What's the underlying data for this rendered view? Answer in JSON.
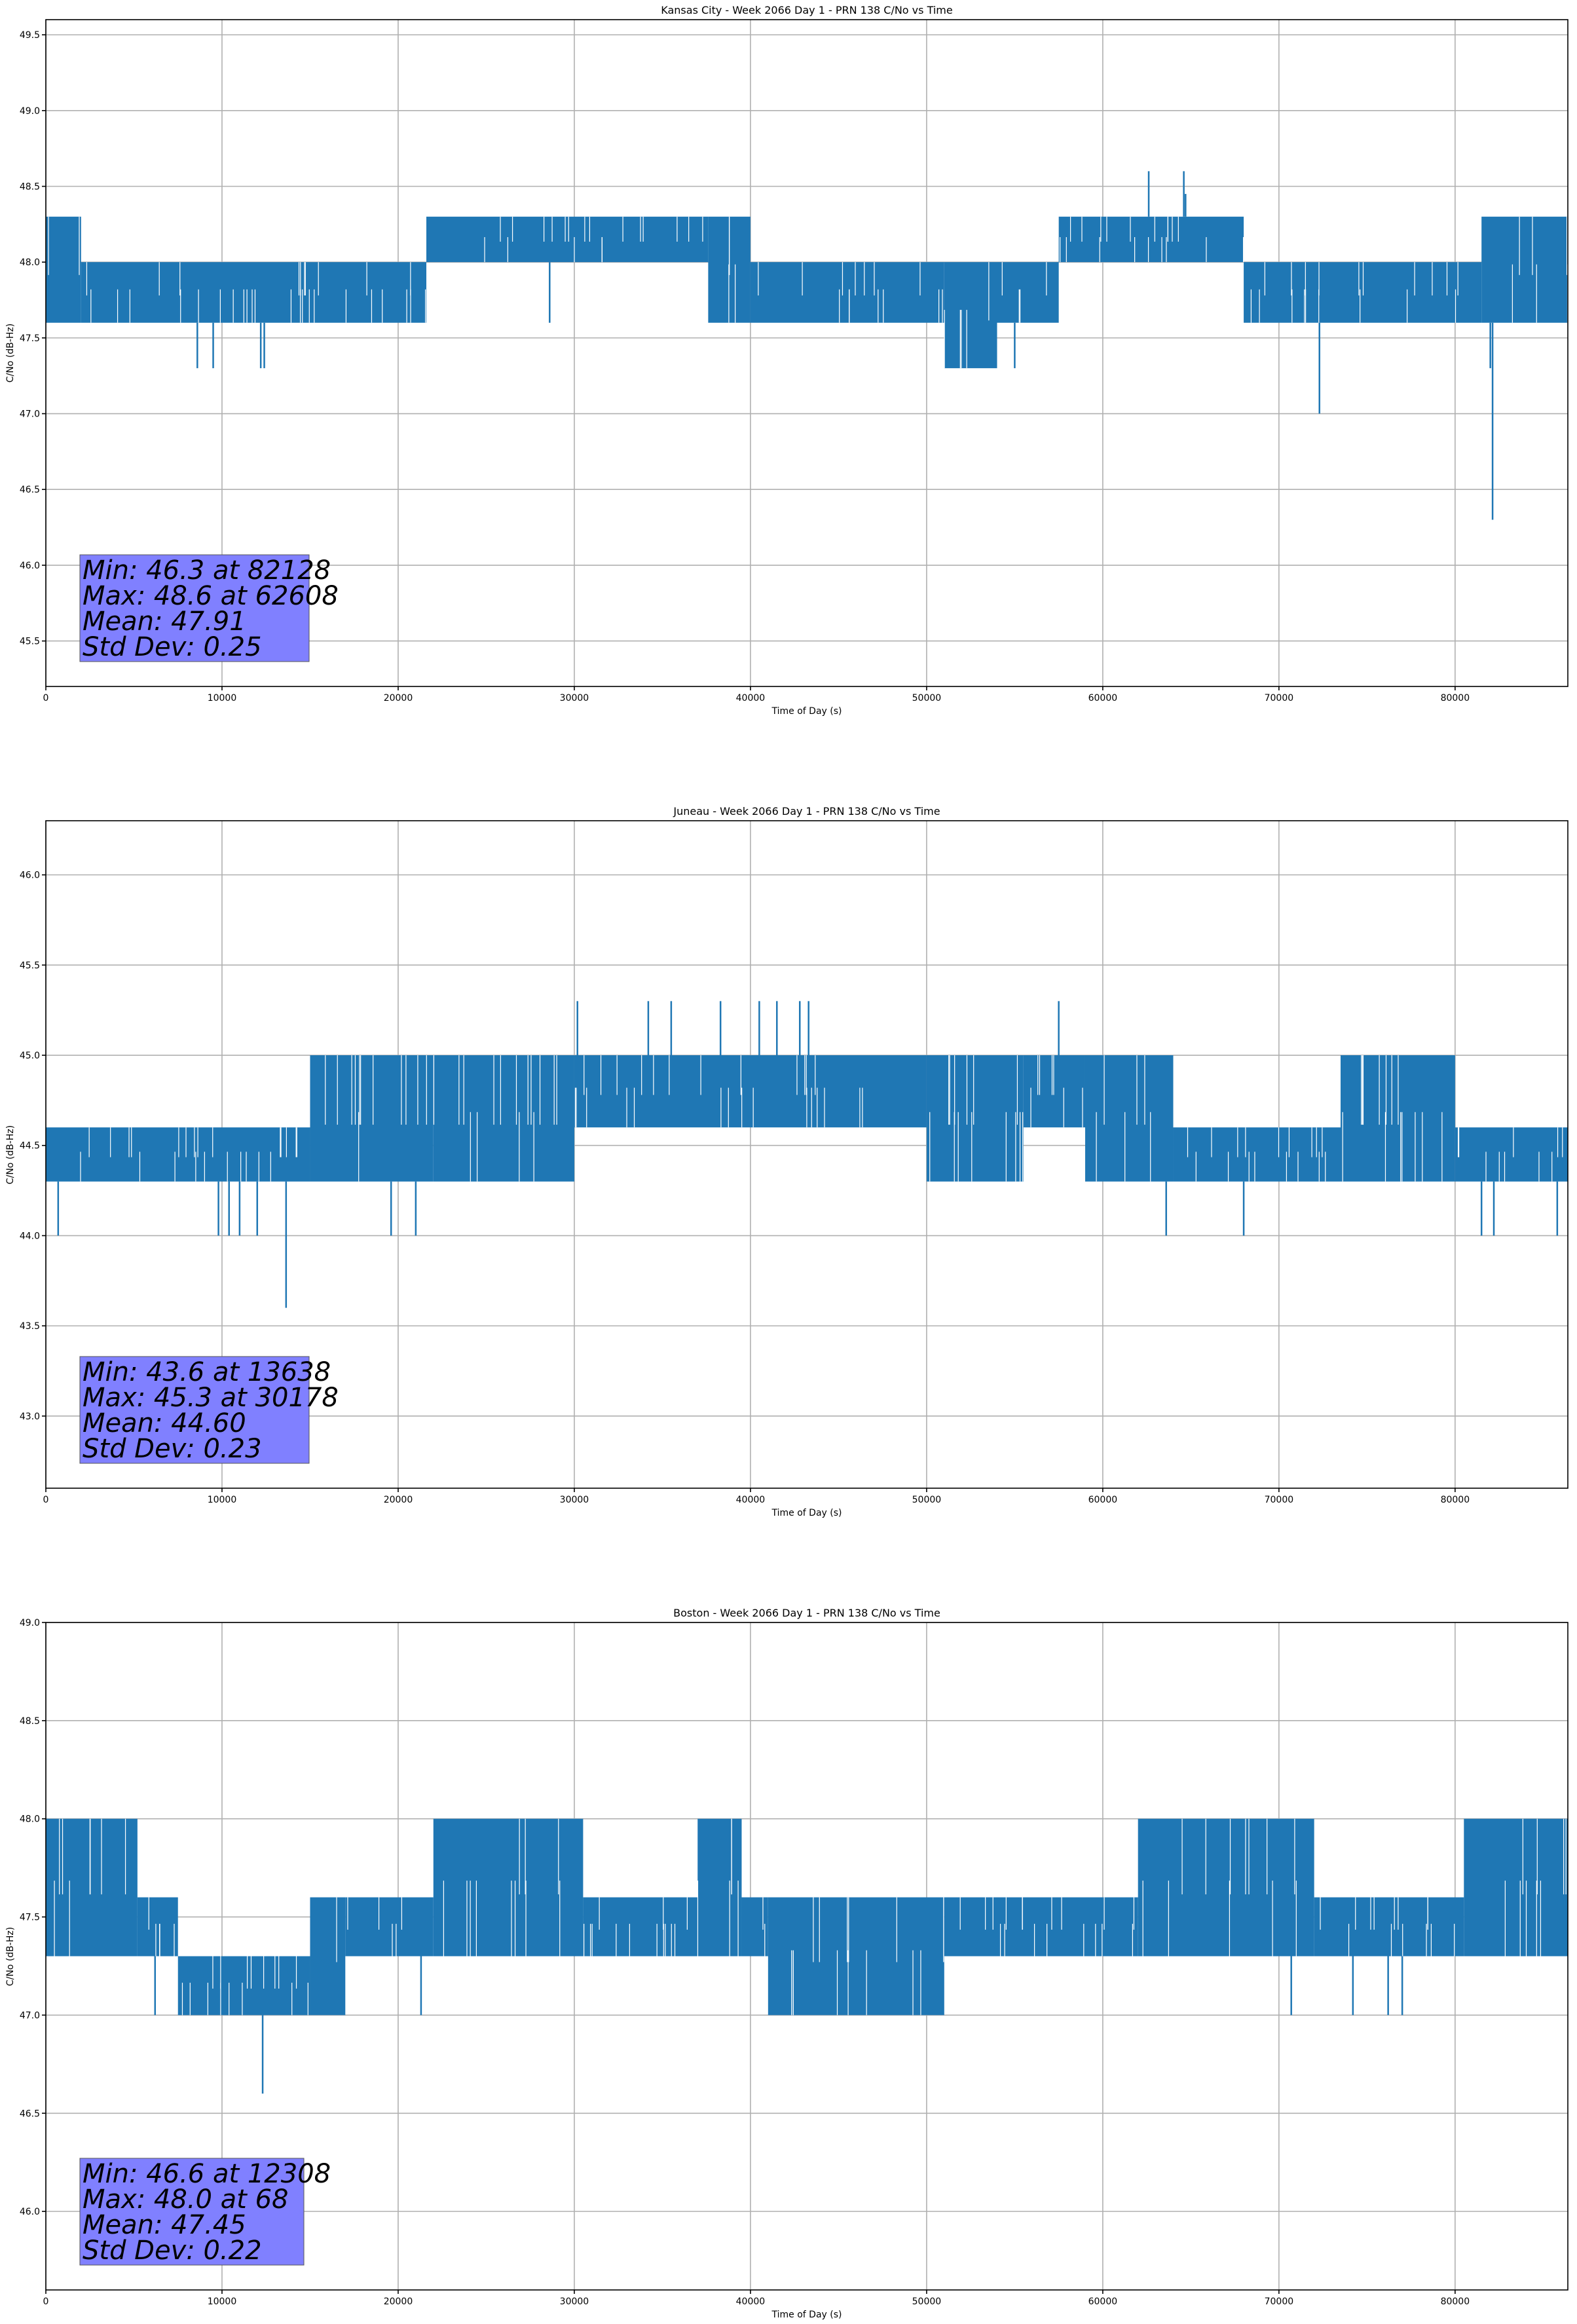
{
  "chart_data": [
    {
      "type": "line",
      "title": "Kansas City - Week 2066 Day 1 - PRN 138 C/No vs Time",
      "xlabel": "Time of Day (s)",
      "ylabel": "C/No (dB-Hz)",
      "xlim": [
        0,
        86400
      ],
      "ylim": [
        45.2,
        49.6
      ],
      "xticks": [
        0,
        10000,
        20000,
        30000,
        40000,
        50000,
        60000,
        70000,
        80000
      ],
      "yticks": [
        45.5,
        46.0,
        46.5,
        47.0,
        47.5,
        48.0,
        48.5,
        49.0,
        49.5
      ],
      "grid": true,
      "color": "#1f77b4",
      "stats_box": [
        "Min: 46.3 at 82128",
        "Max: 48.6 at 62608",
        "Mean: 47.91",
        "Std Dev: 0.25"
      ],
      "stats_box_color": "#8080ff",
      "series": [
        {
          "segments": [
            {
              "x": [
                0,
                2000
              ],
              "range": [
                47.6,
                48.3
              ]
            },
            {
              "x": [
                2000,
                21600
              ],
              "range": [
                47.6,
                48.0
              ]
            },
            {
              "x": [
                21600,
                37600
              ],
              "range": [
                48.0,
                48.3
              ]
            },
            {
              "x": [
                37600,
                40000
              ],
              "range": [
                47.6,
                48.3
              ]
            },
            {
              "x": [
                40000,
                51000
              ],
              "range": [
                47.6,
                48.0
              ]
            },
            {
              "x": [
                51000,
                54000
              ],
              "range": [
                47.3,
                48.0
              ]
            },
            {
              "x": [
                54000,
                57500
              ],
              "range": [
                47.6,
                48.0
              ]
            },
            {
              "x": [
                57500,
                68000
              ],
              "range": [
                48.0,
                48.3
              ]
            },
            {
              "x": [
                68000,
                81500
              ],
              "range": [
                47.6,
                48.0
              ]
            },
            {
              "x": [
                81500,
                86400
              ],
              "range": [
                47.6,
                48.3
              ]
            }
          ],
          "spikes": [
            {
              "x": 8600,
              "y": 47.3
            },
            {
              "x": 9500,
              "y": 47.3
            },
            {
              "x": 12200,
              "y": 47.3
            },
            {
              "x": 12400,
              "y": 47.3
            },
            {
              "x": 28600,
              "y": 47.6
            },
            {
              "x": 62608,
              "y": 48.6
            },
            {
              "x": 64600,
              "y": 48.6
            },
            {
              "x": 64700,
              "y": 48.45
            },
            {
              "x": 72300,
              "y": 47.0
            },
            {
              "x": 82128,
              "y": 46.3
            },
            {
              "x": 82000,
              "y": 47.3
            },
            {
              "x": 55000,
              "y": 47.3
            }
          ]
        }
      ]
    },
    {
      "type": "line",
      "title": "Juneau - Week 2066 Day 1 - PRN 138 C/No vs Time",
      "xlabel": "Time of Day (s)",
      "ylabel": "C/No (dB-Hz)",
      "xlim": [
        0,
        86400
      ],
      "ylim": [
        42.6,
        46.3
      ],
      "xticks": [
        0,
        10000,
        20000,
        30000,
        40000,
        50000,
        60000,
        70000,
        80000
      ],
      "yticks": [
        43.0,
        43.5,
        44.0,
        44.5,
        45.0,
        45.5,
        46.0
      ],
      "grid": true,
      "color": "#1f77b4",
      "stats_box": [
        "Min: 43.6 at 13638",
        "Max: 45.3 at 30178",
        "Mean: 44.60",
        "Std Dev: 0.23"
      ],
      "stats_box_color": "#8080ff",
      "series": [
        {
          "segments": [
            {
              "x": [
                0,
                15000
              ],
              "range": [
                44.3,
                44.6
              ]
            },
            {
              "x": [
                15000,
                22000
              ],
              "range": [
                44.3,
                45.0
              ]
            },
            {
              "x": [
                22000,
                30000
              ],
              "range": [
                44.3,
                45.0
              ]
            },
            {
              "x": [
                30000,
                50000
              ],
              "range": [
                44.6,
                45.0
              ]
            },
            {
              "x": [
                50000,
                55500
              ],
              "range": [
                44.3,
                45.0
              ]
            },
            {
              "x": [
                55500,
                59000
              ],
              "range": [
                44.6,
                45.0
              ]
            },
            {
              "x": [
                59000,
                64000
              ],
              "range": [
                44.3,
                45.0
              ]
            },
            {
              "x": [
                64000,
                73500
              ],
              "range": [
                44.3,
                44.6
              ]
            },
            {
              "x": [
                73500,
                80000
              ],
              "range": [
                44.3,
                45.0
              ]
            },
            {
              "x": [
                80000,
                86400
              ],
              "range": [
                44.3,
                44.6
              ]
            }
          ],
          "spikes": [
            {
              "x": 700,
              "y": 44.0
            },
            {
              "x": 9800,
              "y": 44.0
            },
            {
              "x": 10400,
              "y": 44.0
            },
            {
              "x": 11000,
              "y": 44.0
            },
            {
              "x": 12000,
              "y": 44.0
            },
            {
              "x": 13638,
              "y": 43.6
            },
            {
              "x": 19600,
              "y": 44.0
            },
            {
              "x": 21000,
              "y": 44.0
            },
            {
              "x": 30178,
              "y": 45.3
            },
            {
              "x": 34200,
              "y": 45.3
            },
            {
              "x": 35500,
              "y": 45.3
            },
            {
              "x": 38300,
              "y": 45.3
            },
            {
              "x": 40500,
              "y": 45.3
            },
            {
              "x": 41500,
              "y": 45.3
            },
            {
              "x": 42800,
              "y": 45.3
            },
            {
              "x": 43300,
              "y": 45.3
            },
            {
              "x": 57500,
              "y": 45.3
            },
            {
              "x": 63600,
              "y": 44.0
            },
            {
              "x": 68000,
              "y": 44.0
            },
            {
              "x": 81500,
              "y": 44.0
            },
            {
              "x": 82200,
              "y": 44.0
            },
            {
              "x": 85800,
              "y": 44.0
            }
          ]
        }
      ]
    },
    {
      "type": "line",
      "title": "Boston - Week 2066 Day 1 - PRN 138 C/No vs Time",
      "xlabel": "Time of Day (s)",
      "ylabel": "C/No (dB-Hz)",
      "xlim": [
        0,
        86400
      ],
      "ylim": [
        45.6,
        49.0
      ],
      "xticks": [
        0,
        10000,
        20000,
        30000,
        40000,
        50000,
        60000,
        70000,
        80000
      ],
      "yticks": [
        46.0,
        46.5,
        47.0,
        47.5,
        48.0,
        48.5,
        49.0
      ],
      "grid": true,
      "color": "#1f77b4",
      "stats_box": [
        "Min: 46.6 at 12308",
        "Max: 48.0 at 68",
        "Mean: 47.45",
        "Std Dev: 0.22"
      ],
      "stats_box_color": "#8080ff",
      "series": [
        {
          "segments": [
            {
              "x": [
                0,
                5200
              ],
              "range": [
                47.3,
                48.0
              ]
            },
            {
              "x": [
                5200,
                7500
              ],
              "range": [
                47.3,
                47.6
              ]
            },
            {
              "x": [
                7500,
                15000
              ],
              "range": [
                47.0,
                47.3
              ]
            },
            {
              "x": [
                15000,
                17000
              ],
              "range": [
                47.0,
                47.6
              ]
            },
            {
              "x": [
                17000,
                22000
              ],
              "range": [
                47.3,
                47.6
              ]
            },
            {
              "x": [
                22000,
                30500
              ],
              "range": [
                47.3,
                48.0
              ]
            },
            {
              "x": [
                30500,
                37000
              ],
              "range": [
                47.3,
                47.6
              ]
            },
            {
              "x": [
                37000,
                39500
              ],
              "range": [
                47.3,
                48.0
              ]
            },
            {
              "x": [
                39500,
                41000
              ],
              "range": [
                47.3,
                47.6
              ]
            },
            {
              "x": [
                41000,
                51000
              ],
              "range": [
                47.0,
                47.6
              ]
            },
            {
              "x": [
                51000,
                62000
              ],
              "range": [
                47.3,
                47.6
              ]
            },
            {
              "x": [
                62000,
                72000
              ],
              "range": [
                47.3,
                48.0
              ]
            },
            {
              "x": [
                72000,
                80500
              ],
              "range": [
                47.3,
                47.6
              ]
            },
            {
              "x": [
                80500,
                86400
              ],
              "range": [
                47.3,
                48.0
              ]
            }
          ],
          "spikes": [
            {
              "x": 68,
              "y": 48.0
            },
            {
              "x": 6200,
              "y": 47.0
            },
            {
              "x": 9800,
              "y": 47.0
            },
            {
              "x": 12308,
              "y": 46.6
            },
            {
              "x": 21300,
              "y": 47.0
            },
            {
              "x": 70700,
              "y": 47.0
            },
            {
              "x": 74200,
              "y": 47.0
            },
            {
              "x": 76200,
              "y": 47.0
            },
            {
              "x": 77000,
              "y": 47.0
            }
          ]
        }
      ]
    }
  ]
}
